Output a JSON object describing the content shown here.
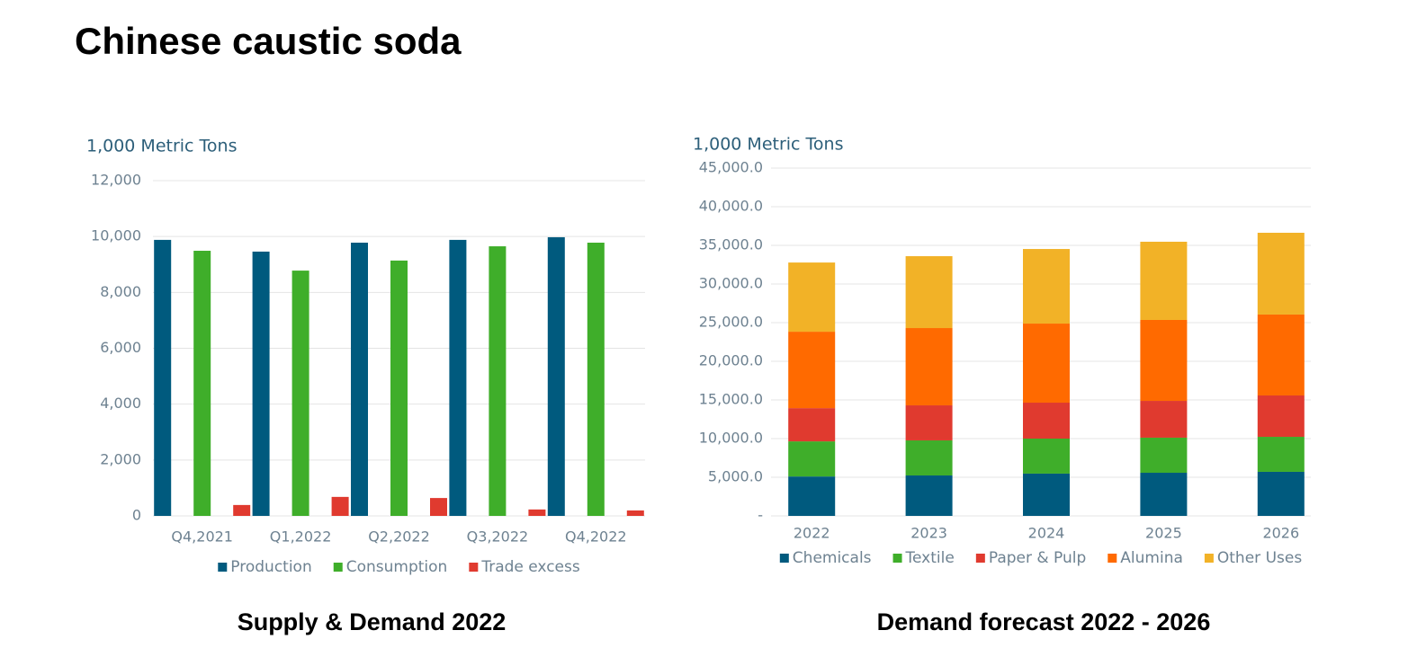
{
  "title": "Chinese caustic soda",
  "chart_data": [
    {
      "type": "bar",
      "caption": "Supply & Demand 2022",
      "y_label": "1,000 Metric Tons",
      "categories": [
        "Q4,2021",
        "Q1,2022",
        "Q2,2022",
        "Q3,2022",
        "Q4,2022"
      ],
      "series": [
        {
          "name": "Production",
          "color": "#005a7e",
          "values": [
            9880,
            9460,
            9780,
            9880,
            9975
          ]
        },
        {
          "name": "Consumption",
          "color": "#3fae2a",
          "values": [
            9490,
            8780,
            9140,
            9650,
            9780
          ]
        },
        {
          "name": "Trade excess",
          "color": "#e03a2f",
          "values": [
            390,
            680,
            640,
            230,
            195
          ]
        }
      ],
      "ylim": [
        0,
        12000
      ],
      "yticks": [
        0,
        {
          "value": 2000,
          "label": "2,000"
        },
        {
          "value": 4000,
          "label": "4,000"
        },
        {
          "value": 6000,
          "label": "6,000"
        },
        {
          "value": 8000,
          "label": "8,000"
        },
        {
          "value": 10000,
          "label": "10,000"
        },
        {
          "value": 12000,
          "label": "12,000"
        }
      ],
      "grid": true,
      "legend": "bottom"
    },
    {
      "type": "stacked_bar",
      "caption": "Demand forecast 2022 - 2026",
      "y_label": "1,000 Metric Tons",
      "categories": [
        "2022",
        "2023",
        "2024",
        "2025",
        "2026"
      ],
      "series": [
        {
          "name": "Chemicals",
          "color": "#005a7e",
          "values": [
            5100,
            5230,
            5470,
            5580,
            5700
          ]
        },
        {
          "name": "Textile",
          "color": "#3fae2a",
          "values": [
            4540,
            4540,
            4530,
            4540,
            4530
          ]
        },
        {
          "name": "Paper & Pulp",
          "color": "#e03a2f",
          "values": [
            4300,
            4530,
            4650,
            4760,
            5350
          ]
        },
        {
          "name": "Alumina",
          "color": "#ff6a00",
          "values": [
            9890,
            10000,
            10230,
            10470,
            10470
          ]
        },
        {
          "name": "Other Uses",
          "color": "#f2b227",
          "values": [
            8950,
            9300,
            9650,
            10120,
            10580
          ]
        }
      ],
      "ylim": [
        0,
        45000
      ],
      "yticks": [
        {
          "value": 0,
          "label": "-"
        },
        {
          "value": 5000,
          "label": "5,000.0"
        },
        {
          "value": 10000,
          "label": "10,000.0"
        },
        {
          "value": 15000,
          "label": "15,000.0"
        },
        {
          "value": 20000,
          "label": "20,000.0"
        },
        {
          "value": 25000,
          "label": "25,000.0"
        },
        {
          "value": 30000,
          "label": "30,000.0"
        },
        {
          "value": 35000,
          "label": "35,000.0"
        },
        {
          "value": 40000,
          "label": "40,000.0"
        },
        {
          "value": 45000,
          "label": "45,000.0"
        }
      ],
      "grid": true,
      "legend": "bottom"
    }
  ]
}
